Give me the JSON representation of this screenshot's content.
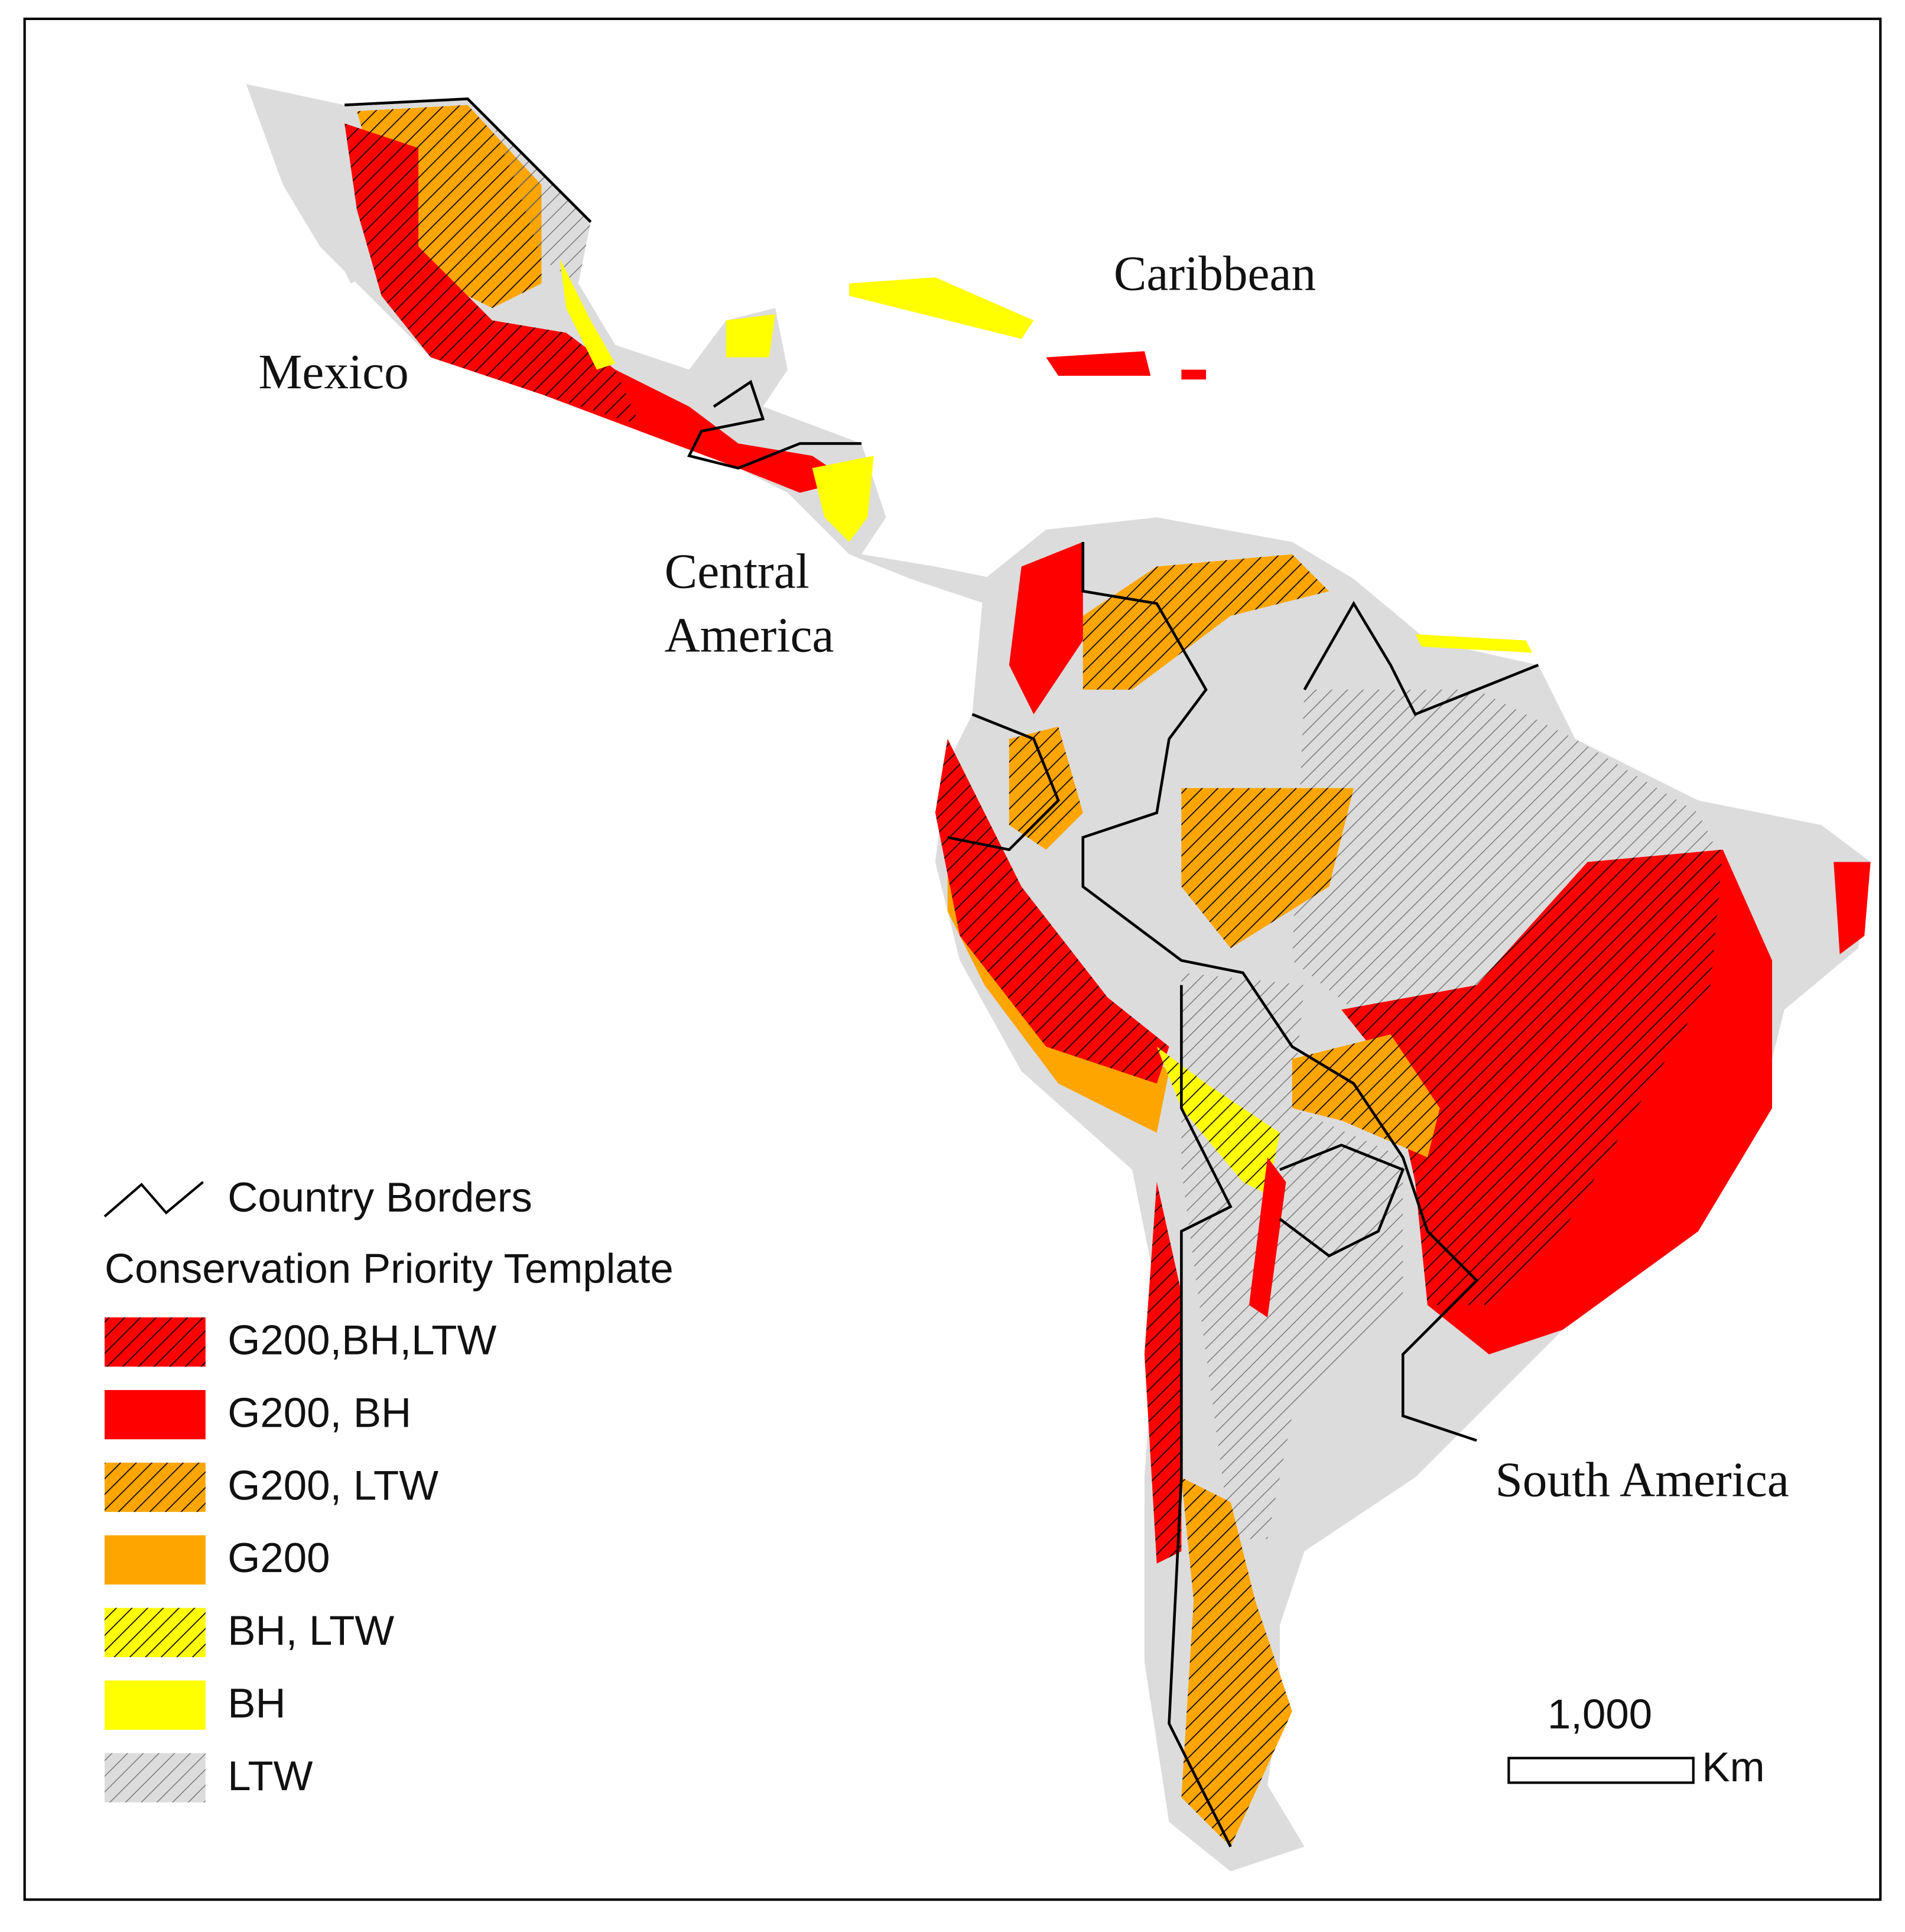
{
  "map": {
    "regions": [
      {
        "lines": [
          "Mexico"
        ]
      },
      {
        "lines": [
          "Caribbean"
        ]
      },
      {
        "lines": [
          "Central",
          "America"
        ]
      },
      {
        "lines": [
          "South America"
        ]
      }
    ],
    "legend": {
      "border_label": "Country Borders",
      "title": "Conservation Priority Template",
      "items": [
        {
          "label": "G200,BH,LTW",
          "color": "#ff0000",
          "hatch": true
        },
        {
          "label": "G200, BH",
          "color": "#ff0000",
          "hatch": false
        },
        {
          "label": "G200, LTW",
          "color": "#ffa500",
          "hatch": true
        },
        {
          "label": "G200",
          "color": "#ffa500",
          "hatch": false
        },
        {
          "label": "BH, LTW",
          "color": "#ffff00",
          "hatch": true
        },
        {
          "label": "BH",
          "color": "#ffff00",
          "hatch": false
        },
        {
          "label": "LTW",
          "color": "#dcdcdc",
          "hatch": true
        }
      ]
    },
    "scale_bar": {
      "label": "1,000",
      "unit": "Km"
    }
  }
}
